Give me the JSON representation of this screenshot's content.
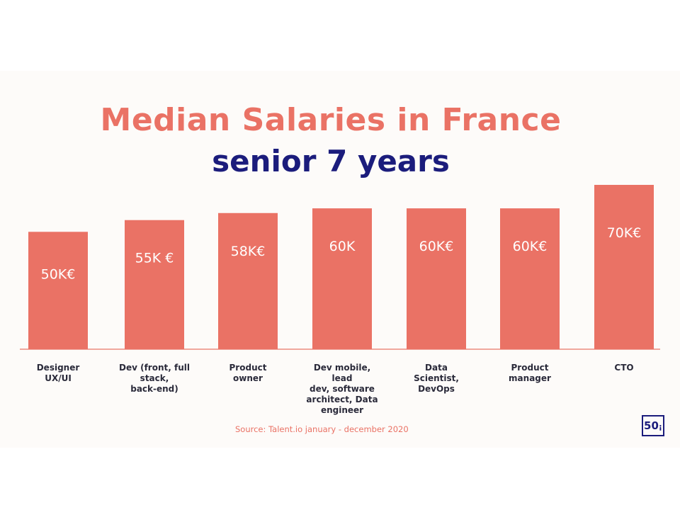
{
  "chart_data": {
    "type": "bar",
    "title": "Median Salaries in France",
    "subtitle": "senior 7 years",
    "categories": [
      [
        "Designer",
        "UX/UI"
      ],
      [
        "Dev (front, full",
        "stack,",
        "back-end)"
      ],
      [
        "Product",
        "owner"
      ],
      [
        "Dev mobile, lead",
        "dev, software",
        "architect, Data",
        "engineer"
      ],
      [
        "Data",
        "Scientist,",
        "DevOps"
      ],
      [
        "Product manager"
      ],
      [
        "CTO"
      ]
    ],
    "values": [
      50,
      55,
      58,
      60,
      60,
      60,
      70
    ],
    "value_labels": [
      "50K€",
      "55K €",
      "58K€",
      "60K",
      "60K€",
      "60K€",
      "70K€"
    ],
    "units": "K€",
    "ylim": [
      0,
      70
    ],
    "grid": false,
    "legend": "none",
    "color": "#ea7265"
  },
  "source": "Source: Talent.io january - december 2020",
  "logo": "50i",
  "colors": {
    "bar": "#ea7265",
    "title": "#ea7265",
    "subtitle": "#1b1c7c",
    "background": "#fdfbf9"
  }
}
